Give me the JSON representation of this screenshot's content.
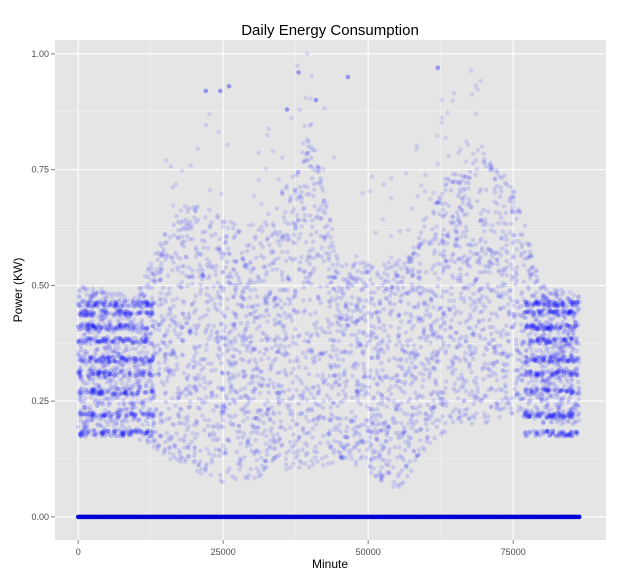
{
  "chart_data": {
    "type": "scatter",
    "title": "Daily Energy Consumption",
    "xlabel": "Minute",
    "ylabel": "Power (KW)",
    "xlim": [
      -4000,
      91000
    ],
    "ylim": [
      -0.05,
      1.03
    ],
    "x_ticks": [
      0,
      25000,
      50000,
      75000
    ],
    "x_tick_labels": [
      "0",
      "25000",
      "50000",
      "75000"
    ],
    "y_ticks": [
      0.0,
      0.25,
      0.5,
      0.75,
      1.0
    ],
    "y_tick_labels": [
      "0.00",
      "0.25",
      "0.50",
      "0.75",
      "1.00"
    ],
    "grid": true,
    "background": "#e5e5e5",
    "point_color": "#0000ff",
    "point_alpha": 0.12,
    "baseline_series": {
      "x_start": 0,
      "x_end": 86400,
      "y": 0.0,
      "note_visual": "dense opaque points at zero"
    },
    "cluster_profile": [
      {
        "x": 0,
        "low": 0.17,
        "high": 0.5
      },
      {
        "x": 10000,
        "low": 0.17,
        "high": 0.48
      },
      {
        "x": 15000,
        "low": 0.13,
        "high": 0.62
      },
      {
        "x": 20000,
        "low": 0.1,
        "high": 0.7
      },
      {
        "x": 25000,
        "low": 0.07,
        "high": 0.65
      },
      {
        "x": 30000,
        "low": 0.08,
        "high": 0.6
      },
      {
        "x": 35000,
        "low": 0.1,
        "high": 0.7
      },
      {
        "x": 40000,
        "low": 0.1,
        "high": 0.85
      },
      {
        "x": 45000,
        "low": 0.12,
        "high": 0.55
      },
      {
        "x": 50000,
        "low": 0.1,
        "high": 0.55
      },
      {
        "x": 55000,
        "low": 0.05,
        "high": 0.55
      },
      {
        "x": 60000,
        "low": 0.15,
        "high": 0.65
      },
      {
        "x": 65000,
        "low": 0.2,
        "high": 0.75
      },
      {
        "x": 70000,
        "low": 0.2,
        "high": 0.78
      },
      {
        "x": 75000,
        "low": 0.22,
        "high": 0.72
      },
      {
        "x": 80000,
        "low": 0.2,
        "high": 0.5
      },
      {
        "x": 86400,
        "low": 0.2,
        "high": 0.48
      }
    ],
    "notable_points": [
      {
        "x": 62000,
        "y": 0.97
      },
      {
        "x": 38000,
        "y": 0.96
      },
      {
        "x": 41000,
        "y": 0.9
      },
      {
        "x": 26000,
        "y": 0.93
      },
      {
        "x": 24500,
        "y": 0.92
      },
      {
        "x": 22000,
        "y": 0.92
      },
      {
        "x": 46500,
        "y": 0.95
      },
      {
        "x": 36000,
        "y": 0.88
      }
    ]
  }
}
